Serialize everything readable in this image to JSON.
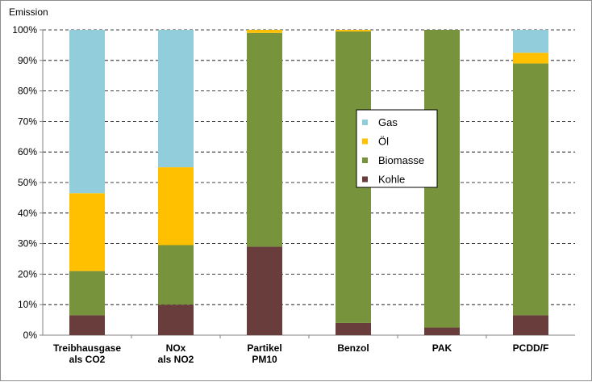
{
  "chart_data": {
    "type": "bar",
    "stacked": true,
    "percent": true,
    "ylabel": "Emission",
    "ylim": [
      0,
      100
    ],
    "yticks": [
      "0%",
      "10%",
      "20%",
      "30%",
      "40%",
      "50%",
      "60%",
      "70%",
      "80%",
      "90%",
      "100%"
    ],
    "categories": [
      [
        "Treibhausgase",
        "als CO2"
      ],
      [
        "NOx",
        "als NO2"
      ],
      [
        "Partikel",
        "PM10"
      ],
      [
        "Benzol"
      ],
      [
        "PAK"
      ],
      [
        "PCDD/F"
      ]
    ],
    "series": [
      {
        "name": "Kohle",
        "color": "#6a3d3d",
        "values": [
          6.5,
          10,
          29,
          4,
          2.5,
          6.5
        ]
      },
      {
        "name": "Biomasse",
        "color": "#77933c",
        "values": [
          14.5,
          19.5,
          70,
          95.5,
          97.5,
          82.5
        ]
      },
      {
        "name": "Öl",
        "color": "#ffc000",
        "values": [
          25.5,
          25.5,
          1,
          0.5,
          0,
          3.5
        ]
      },
      {
        "name": "Gas",
        "color": "#92cddc",
        "values": [
          53.5,
          45,
          0,
          0,
          0,
          7.5
        ]
      }
    ],
    "legend_order": [
      "Gas",
      "Öl",
      "Biomasse",
      "Kohle"
    ],
    "legend_position": "center",
    "grid": "horizontal-dashed"
  }
}
